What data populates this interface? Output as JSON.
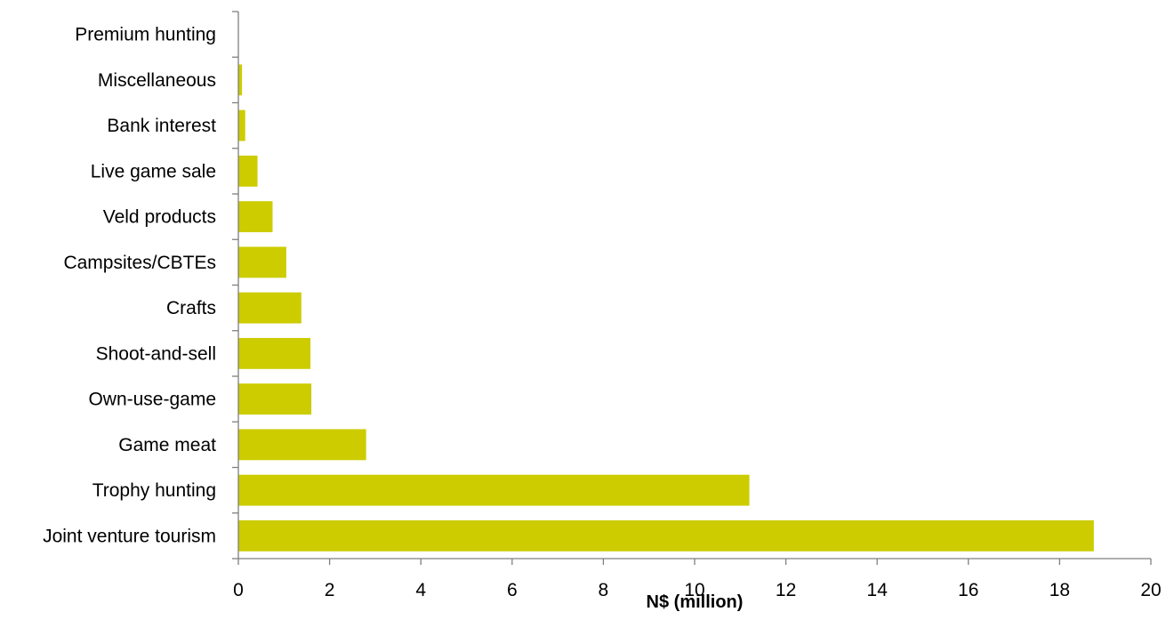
{
  "chart_data": {
    "type": "bar",
    "orientation": "horizontal",
    "categories": [
      "Joint venture tourism",
      "Trophy hunting",
      "Game meat",
      "Own-use-game",
      "Shoot-and-sell",
      "Crafts",
      "Campsites/CBTEs",
      "Veld products",
      "Live game sale",
      "Bank interest",
      "Miscellaneous",
      "Premium hunting"
    ],
    "values": [
      18.75,
      11.2,
      2.8,
      1.6,
      1.58,
      1.38,
      1.05,
      0.75,
      0.42,
      0.15,
      0.08,
      0.01
    ],
    "xlabel": "N$ (million)",
    "ylabel": "",
    "xlim": [
      0,
      20
    ],
    "xticks": [
      "0",
      "2",
      "4",
      "6",
      "8",
      "10",
      "12",
      "14",
      "16",
      "18",
      "20"
    ],
    "bar_color": "#cccc00",
    "grid": false,
    "legend": "none"
  }
}
